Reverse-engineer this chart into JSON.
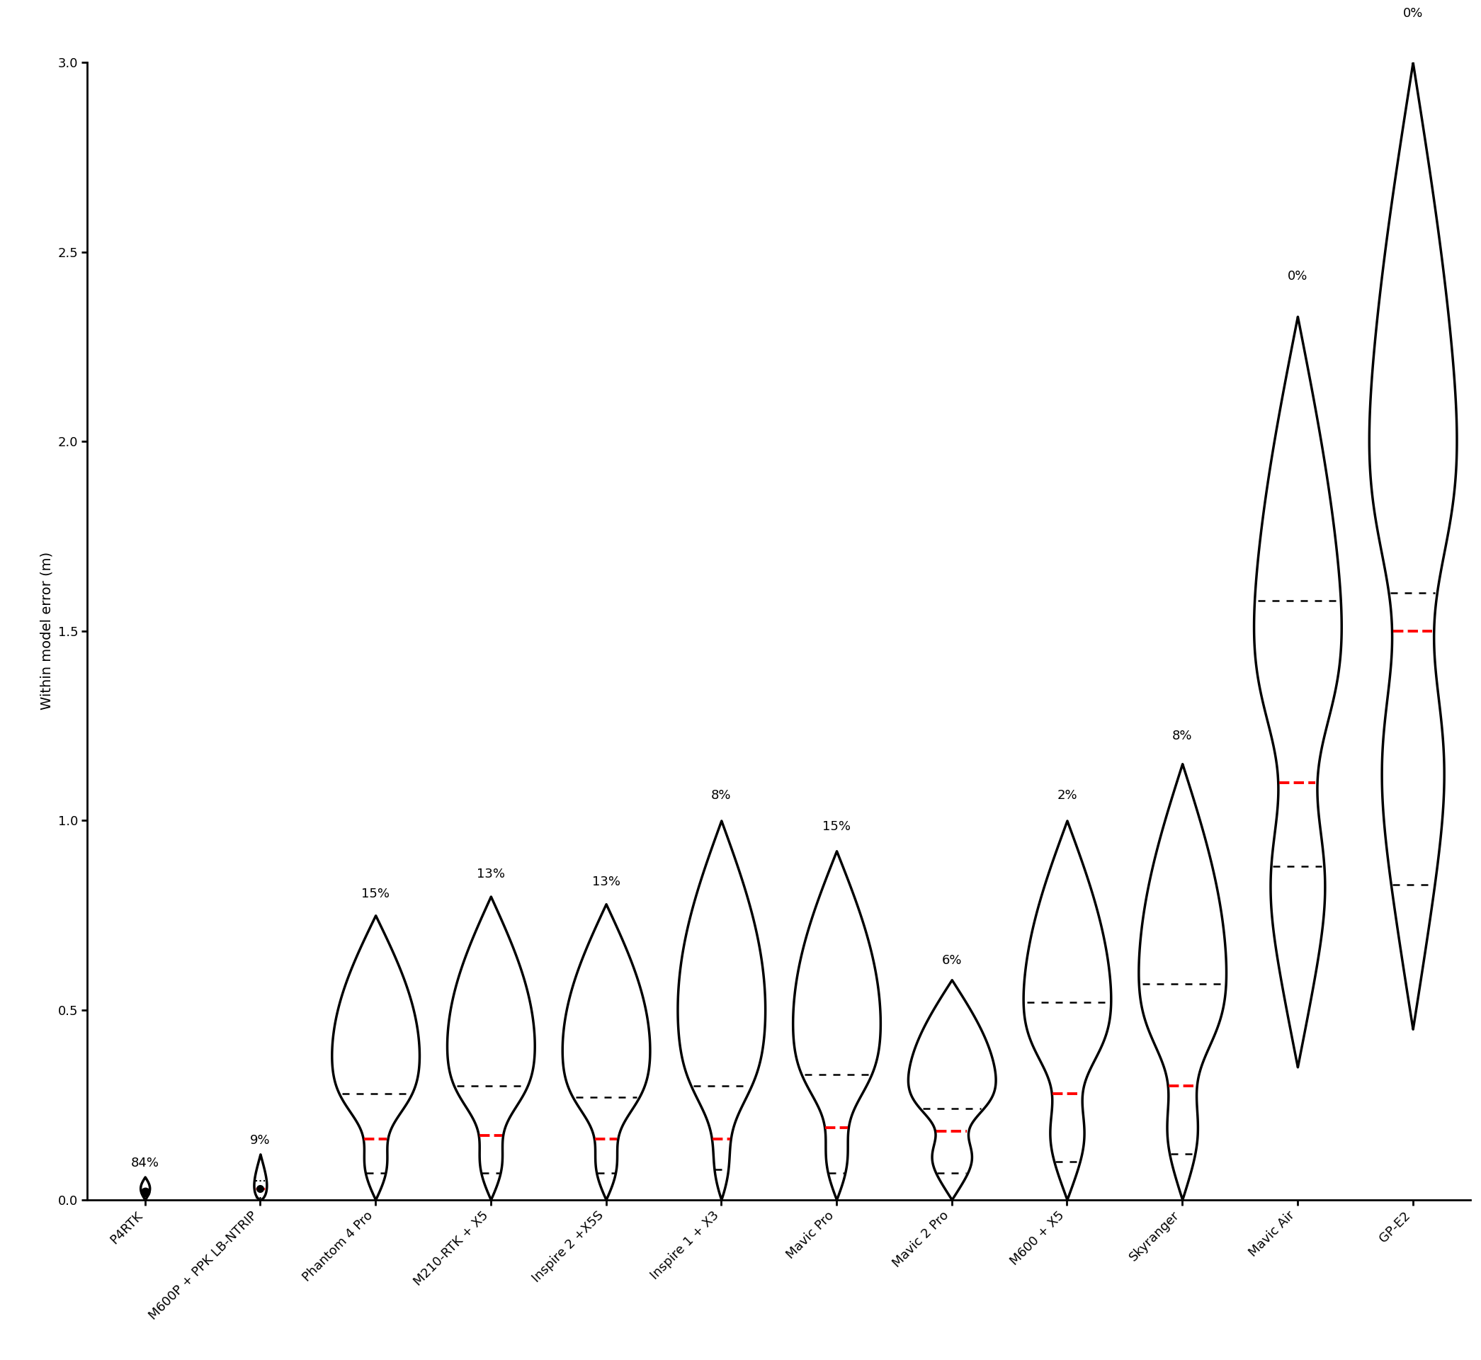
{
  "categories": [
    "P4RTK",
    "M600P + PPK LB-NTRIP",
    "Phantom 4 Pro",
    "M210-RTK + X5",
    "Inspire 2 +X5S",
    "Inspire 1 + X3",
    "Mavic Pro",
    "Mavic 2 Pro",
    "M600 + X5",
    "Skyranger",
    "Mavic Air",
    "GP-E2"
  ],
  "percentages": [
    "84%",
    "9%",
    "15%",
    "13%",
    "13%",
    "8%",
    "15%",
    "6%",
    "2%",
    "8%",
    "0%",
    "0%"
  ],
  "medians": [
    0.02,
    0.03,
    0.16,
    0.17,
    0.16,
    0.16,
    0.19,
    0.18,
    0.28,
    0.3,
    1.1,
    1.5
  ],
  "q1": [
    0.005,
    0.005,
    0.07,
    0.07,
    0.07,
    0.08,
    0.07,
    0.07,
    0.1,
    0.12,
    0.88,
    0.83
  ],
  "q3": [
    0.03,
    0.05,
    0.28,
    0.3,
    0.27,
    0.3,
    0.33,
    0.24,
    0.52,
    0.57,
    1.58,
    1.6
  ],
  "violin_min": [
    0.0,
    0.0,
    0.0,
    0.0,
    0.0,
    0.0,
    0.0,
    0.0,
    0.0,
    0.0,
    0.35,
    0.45
  ],
  "violin_max": [
    0.06,
    0.12,
    0.75,
    0.8,
    0.78,
    1.0,
    0.92,
    0.58,
    1.0,
    1.15,
    2.33,
    3.0
  ],
  "ylim": [
    0.0,
    3.0
  ],
  "ylabel": "Within model error (m)",
  "background_color": "#ffffff",
  "violin_facecolor": "white",
  "violin_edgecolor": "black",
  "median_color": "#ff0000",
  "quartile_color": "black",
  "lw": 2.5,
  "label_fontsize": 14,
  "tick_fontsize": 13,
  "pct_fontsize": 13
}
